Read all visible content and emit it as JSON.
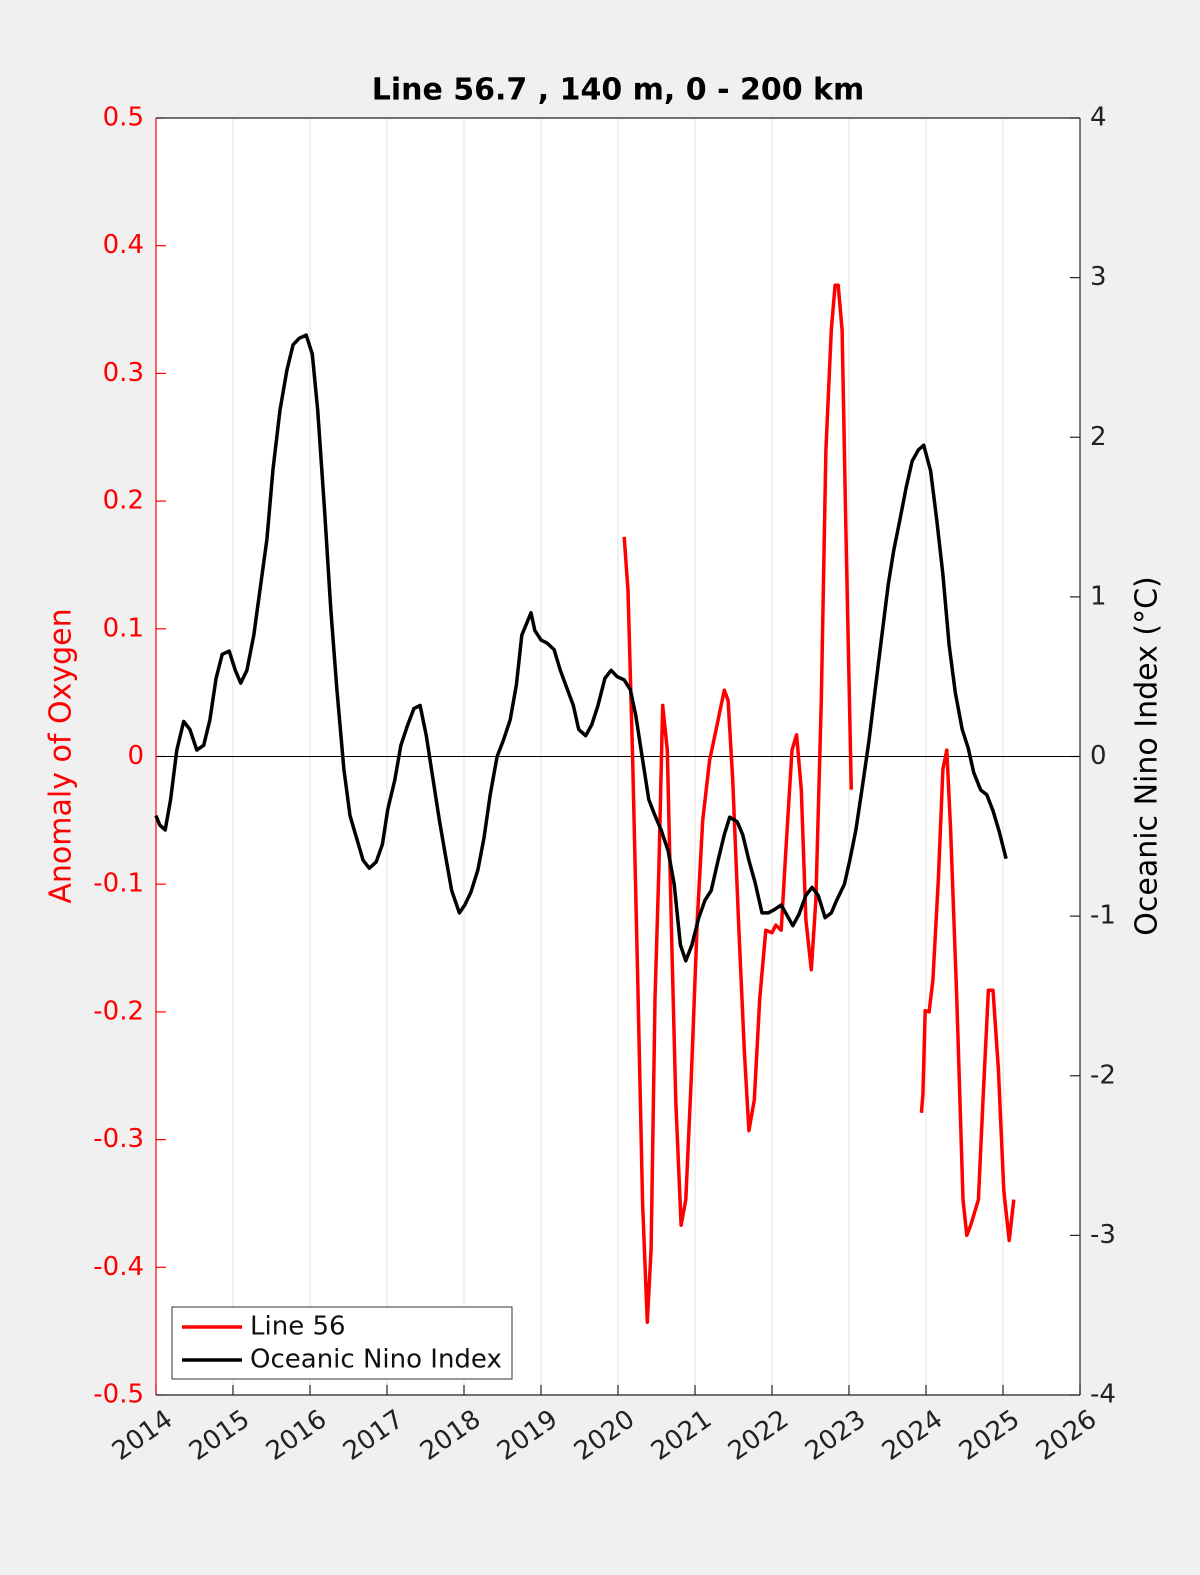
{
  "chart_data": {
    "type": "line",
    "title": "Line 56.7 , 140 m, 0 - 200 km",
    "ylabel": "Anomaly of Oxygen",
    "y2label": "Oceanic Nino Index (°C)",
    "xlim": [
      2014,
      2026
    ],
    "xticks": [
      2014,
      2015,
      2016,
      2017,
      2018,
      2019,
      2020,
      2021,
      2022,
      2023,
      2024,
      2025,
      2026
    ],
    "ylim": [
      -0.5,
      0.5
    ],
    "yticks": [
      -0.5,
      -0.4,
      -0.3,
      -0.2,
      -0.1,
      0,
      0.1,
      0.2,
      0.3,
      0.4,
      0.5
    ],
    "y2lim": [
      -4,
      4
    ],
    "y2ticks": [
      -4,
      -3,
      -2,
      -1,
      0,
      1,
      2,
      3,
      4
    ],
    "grid": "x",
    "zeroline": true,
    "legend": "lower left",
    "series": [
      {
        "name": "Line 56",
        "color": "#ff0000",
        "x": [
          2020.08,
          2020.13,
          2020.19,
          2020.25,
          2020.32,
          2020.38,
          2020.43,
          2020.48,
          2020.53,
          2020.58,
          2020.64,
          2020.7,
          2020.75,
          2020.82,
          2020.88,
          2020.95,
          2021.03,
          2021.1,
          2021.19,
          2021.27,
          2021.38,
          2021.43,
          2021.49,
          2021.57,
          2021.64,
          2021.7,
          2021.77,
          2021.84,
          2021.92,
          2022.0,
          2022.05,
          2022.12,
          2022.18,
          2022.26,
          2022.32,
          2022.38,
          2022.44,
          2022.51,
          2022.57,
          2022.64,
          2022.7,
          2022.77,
          2022.82,
          2022.86,
          2022.91,
          2022.96,
          2023.03,
          2023.5,
          2023.94,
          2023.96,
          2023.99,
          2024.04,
          2024.09,
          2024.16,
          2024.22,
          2024.27,
          2024.32,
          2024.4,
          2024.48,
          2024.53,
          2024.58,
          2024.68,
          2024.74,
          2024.81,
          2024.87,
          2024.94,
          2025.01,
          2025.08,
          2025.14
        ],
        "values": [
          0.172,
          0.13,
          0.0,
          -0.16,
          -0.35,
          -0.443,
          -0.386,
          -0.19,
          -0.09,
          0.04,
          0.005,
          -0.15,
          -0.27,
          -0.367,
          -0.347,
          -0.253,
          -0.128,
          -0.05,
          -0.003,
          0.02,
          0.052,
          0.044,
          -0.018,
          -0.136,
          -0.23,
          -0.293,
          -0.269,
          -0.19,
          -0.136,
          -0.138,
          -0.132,
          -0.136,
          -0.073,
          0.005,
          0.017,
          -0.026,
          -0.128,
          -0.167,
          -0.112,
          0.044,
          0.24,
          0.334,
          0.369,
          0.369,
          0.334,
          0.177,
          -0.026,
          null,
          -0.279,
          -0.265,
          -0.199,
          -0.2,
          -0.175,
          -0.097,
          -0.01,
          0.005,
          -0.057,
          -0.19,
          -0.347,
          -0.375,
          -0.367,
          -0.347,
          -0.269,
          -0.183,
          -0.183,
          -0.245,
          -0.34,
          -0.379,
          -0.347
        ]
      },
      {
        "name": "Oceanic Nino Index",
        "color": "#000000",
        "axis": "y2",
        "x": [
          2014.0,
          2014.05,
          2014.12,
          2014.19,
          2014.27,
          2014.36,
          2014.44,
          2014.53,
          2014.62,
          2014.7,
          2014.78,
          2014.86,
          2014.95,
          2015.03,
          2015.1,
          2015.18,
          2015.27,
          2015.35,
          2015.44,
          2015.52,
          2015.61,
          2015.7,
          2015.78,
          2015.86,
          2015.95,
          2016.03,
          2016.1,
          2016.19,
          2016.27,
          2016.35,
          2016.44,
          2016.52,
          2016.61,
          2016.69,
          2016.77,
          2016.86,
          2016.94,
          2017.01,
          2017.1,
          2017.18,
          2017.27,
          2017.35,
          2017.43,
          2017.51,
          2017.6,
          2017.68,
          2017.77,
          2017.84,
          2017.94,
          2018.01,
          2018.09,
          2018.18,
          2018.26,
          2018.34,
          2018.43,
          2018.51,
          2018.6,
          2018.68,
          2018.75,
          2018.87,
          2018.92,
          2019.0,
          2019.08,
          2019.17,
          2019.25,
          2019.32,
          2019.42,
          2019.49,
          2019.58,
          2019.66,
          2019.74,
          2019.83,
          2019.91,
          2019.99,
          2020.08,
          2020.16,
          2020.23,
          2020.32,
          2020.4,
          2020.48,
          2020.56,
          2020.65,
          2020.73,
          2020.81,
          2020.88,
          2020.96,
          2021.05,
          2021.13,
          2021.21,
          2021.3,
          2021.38,
          2021.45,
          2021.55,
          2021.62,
          2021.7,
          2021.78,
          2021.87,
          2021.95,
          2022.03,
          2022.12,
          2022.19,
          2022.27,
          2022.35,
          2022.44,
          2022.52,
          2022.6,
          2022.69,
          2022.77,
          2022.84,
          2022.94,
          2023.01,
          2023.09,
          2023.17,
          2023.26,
          2023.34,
          2023.42,
          2023.51,
          2023.58,
          2023.66,
          2023.74,
          2023.82,
          2023.9,
          2023.97,
          2024.06,
          2024.14,
          2024.22,
          2024.3,
          2024.38,
          2024.47,
          2024.55,
          2024.62,
          2024.71,
          2024.79,
          2024.87,
          2024.95,
          2025.04
        ],
        "values": [
          -0.37,
          -0.43,
          -0.46,
          -0.27,
          0.04,
          0.22,
          0.17,
          0.04,
          0.07,
          0.23,
          0.49,
          0.64,
          0.66,
          0.54,
          0.46,
          0.54,
          0.76,
          1.04,
          1.36,
          1.8,
          2.17,
          2.42,
          2.58,
          2.62,
          2.64,
          2.52,
          2.17,
          1.54,
          0.92,
          0.42,
          -0.08,
          -0.37,
          -0.52,
          -0.65,
          -0.7,
          -0.66,
          -0.55,
          -0.33,
          -0.15,
          0.07,
          0.2,
          0.3,
          0.32,
          0.13,
          -0.15,
          -0.4,
          -0.65,
          -0.84,
          -0.98,
          -0.93,
          -0.85,
          -0.71,
          -0.51,
          -0.24,
          0.0,
          0.1,
          0.23,
          0.45,
          0.76,
          0.9,
          0.79,
          0.73,
          0.71,
          0.67,
          0.54,
          0.45,
          0.32,
          0.17,
          0.13,
          0.2,
          0.32,
          0.49,
          0.54,
          0.5,
          0.48,
          0.42,
          0.26,
          -0.02,
          -0.27,
          -0.37,
          -0.46,
          -0.59,
          -0.8,
          -1.18,
          -1.28,
          -1.18,
          -1.01,
          -0.9,
          -0.84,
          -0.65,
          -0.49,
          -0.38,
          -0.41,
          -0.49,
          -0.65,
          -0.79,
          -0.98,
          -0.98,
          -0.96,
          -0.93,
          -0.99,
          -1.06,
          -0.99,
          -0.87,
          -0.82,
          -0.87,
          -1.01,
          -0.98,
          -0.9,
          -0.8,
          -0.65,
          -0.46,
          -0.2,
          0.1,
          0.42,
          0.73,
          1.08,
          1.29,
          1.48,
          1.68,
          1.85,
          1.92,
          1.95,
          1.79,
          1.48,
          1.14,
          0.7,
          0.4,
          0.17,
          0.05,
          -0.1,
          -0.21,
          -0.24,
          -0.34,
          -0.47,
          -0.64
        ]
      }
    ]
  }
}
